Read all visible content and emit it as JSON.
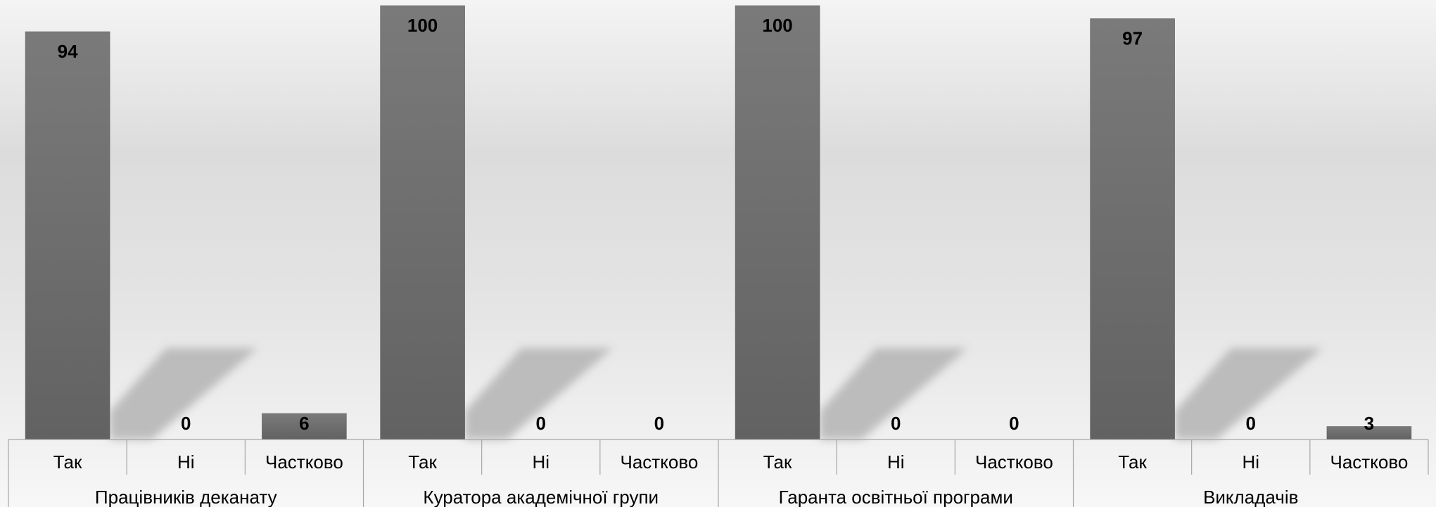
{
  "chart_data": {
    "type": "bar",
    "title": "",
    "xlabel": "",
    "ylabel": "",
    "ylim": [
      0,
      100
    ],
    "grid": false,
    "legend": "none",
    "bar_color": "#6e6e6e",
    "shadow_color": "#b4b4b4",
    "groups": [
      {
        "label": "Працівників деканату",
        "categories": [
          "Так",
          "Ні",
          "Частково"
        ],
        "values": [
          94,
          0,
          6
        ]
      },
      {
        "label": "Куратора академічної групи",
        "categories": [
          "Так",
          "Ні",
          "Частково"
        ],
        "values": [
          100,
          0,
          0
        ]
      },
      {
        "label": "Гаранта освітньої програми",
        "categories": [
          "Так",
          "Ні",
          "Частково"
        ],
        "values": [
          100,
          0,
          0
        ]
      },
      {
        "label": "Викладачів",
        "categories": [
          "Так",
          "Ні",
          "Частково"
        ],
        "values": [
          97,
          0,
          3
        ]
      }
    ]
  }
}
